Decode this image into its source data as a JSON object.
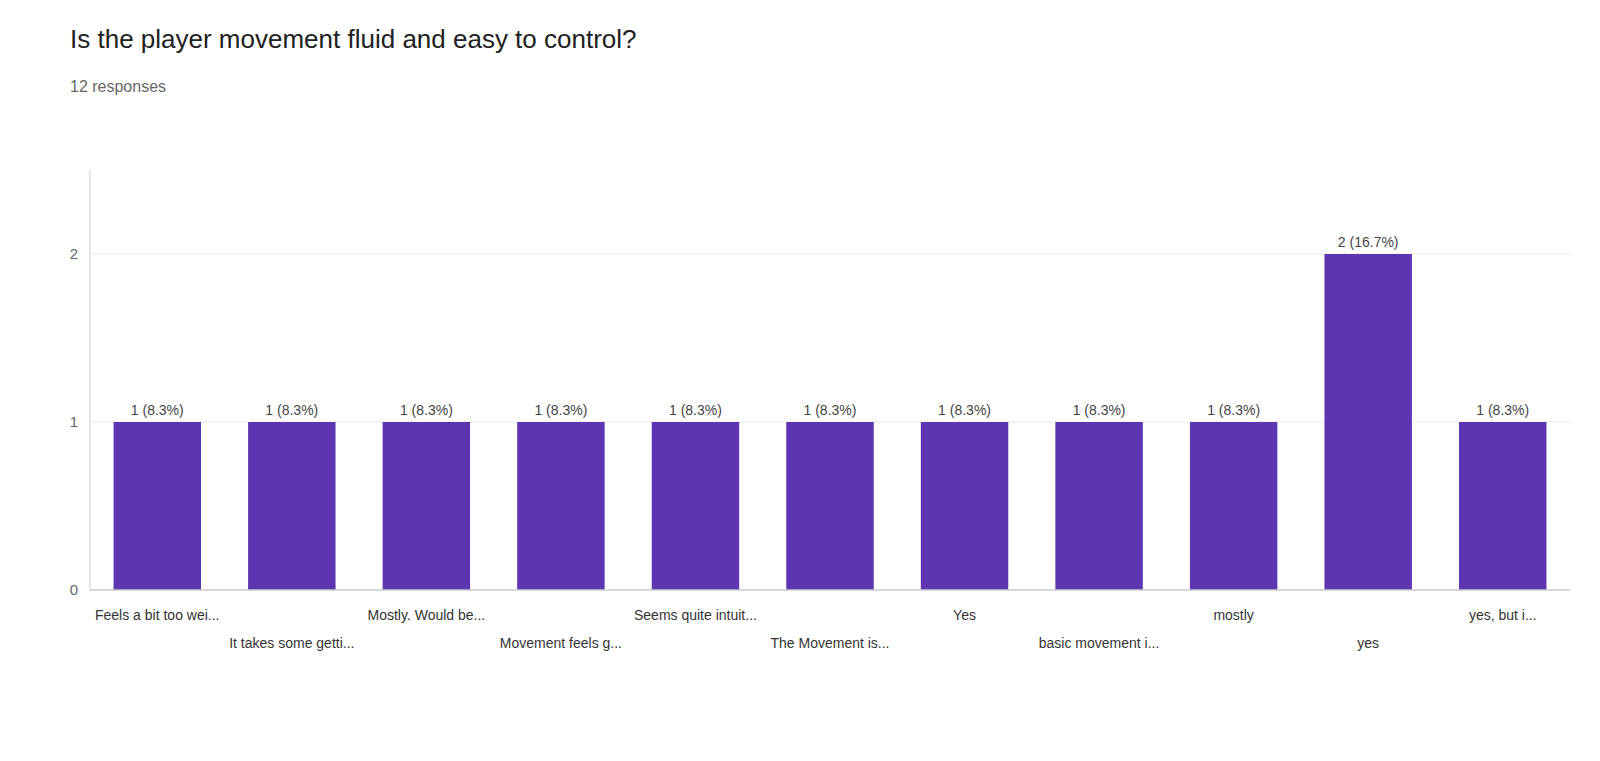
{
  "chart_data": {
    "type": "bar",
    "title": "Is the player movement fluid and easy to control?",
    "subtitle": "12 responses",
    "categories": [
      "Feels a bit too wei...",
      "It takes some getti...",
      "Mostly. Would be...",
      "Movement feels g...",
      "Seems quite intuit...",
      "The Movement is...",
      "Yes",
      "basic movement i...",
      "mostly",
      "yes",
      "yes, but i..."
    ],
    "values": [
      1,
      1,
      1,
      1,
      1,
      1,
      1,
      1,
      1,
      2,
      1
    ],
    "value_labels": [
      "1 (8.3%)",
      "1 (8.3%)",
      "1 (8.3%)",
      "1 (8.3%)",
      "1 (8.3%)",
      "1 (8.3%)",
      "1 (8.3%)",
      "1 (8.3%)",
      "1 (8.3%)",
      "2 (16.7%)",
      "1 (8.3%)"
    ],
    "data_labels": true,
    "color": "#5e35b1",
    "ylim": [
      0,
      2.5
    ],
    "yticks": [
      0,
      1,
      2
    ],
    "grid": true
  }
}
